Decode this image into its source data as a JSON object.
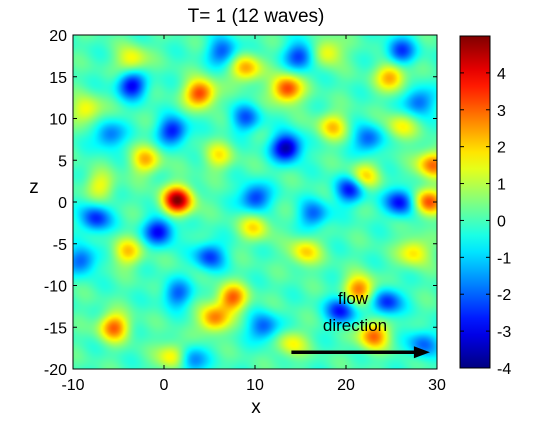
{
  "chart_data": {
    "type": "heatmap",
    "title": "T= 1   (12 waves)",
    "xlabel": "x",
    "ylabel": "z",
    "xlim": [
      -10,
      30
    ],
    "ylim": [
      -20,
      20
    ],
    "xticks": [
      -10,
      0,
      10,
      20,
      30
    ],
    "yticks": [
      -20,
      -15,
      -10,
      -5,
      0,
      5,
      10,
      15,
      20
    ],
    "colorbar": {
      "colormap": "jet",
      "clim": [
        -4,
        5
      ],
      "ticks": [
        -4,
        -3,
        -2,
        -1,
        0,
        1,
        2,
        3,
        4
      ]
    },
    "grid": false,
    "annotation": {
      "text_line1": "flow",
      "text_line2": "direction",
      "arrow": {
        "from": [
          14,
          -18
        ],
        "to": [
          29,
          -18
        ]
      }
    },
    "peaks": [
      {
        "x": 1.5,
        "z": 0.2,
        "value": 4.8
      },
      {
        "x": 13.5,
        "z": 13.5,
        "value": 3.5
      },
      {
        "x": 4.0,
        "z": 13.0,
        "value": 3.5
      },
      {
        "x": 7.5,
        "z": -11.5,
        "value": 3.0
      },
      {
        "x": 21.5,
        "z": -10.5,
        "value": 3.0
      },
      {
        "x": 23.0,
        "z": -16.0,
        "value": 3.0
      },
      {
        "x": 29.5,
        "z": 4.5,
        "value": 3.0
      },
      {
        "x": 29.0,
        "z": 0.0,
        "value": 3.2
      },
      {
        "x": -5.5,
        "z": -15.0,
        "value": 3.0
      },
      {
        "x": 5.5,
        "z": -14.0,
        "value": 2.8
      },
      {
        "x": 9.0,
        "z": 16.0,
        "value": 2.5
      },
      {
        "x": -2.0,
        "z": 5.0,
        "value": 2.2
      },
      {
        "x": 25.0,
        "z": 15.0,
        "value": 2.5
      },
      {
        "x": 18.5,
        "z": 9.0,
        "value": 2.0
      },
      {
        "x": 22.0,
        "z": 3.0,
        "value": 2.0
      },
      {
        "x": -8.5,
        "z": 11.0,
        "value": 1.8
      },
      {
        "x": -4.0,
        "z": -6.0,
        "value": 2.0
      },
      {
        "x": 10.0,
        "z": -3.0,
        "value": 1.8
      },
      {
        "x": 15.5,
        "z": -6.0,
        "value": 2.0
      },
      {
        "x": 1.0,
        "z": -18.5,
        "value": 2.0
      },
      {
        "x": 27.5,
        "z": -6.0,
        "value": 2.0
      },
      {
        "x": -7.0,
        "z": 2.0,
        "value": 1.5
      },
      {
        "x": 18.0,
        "z": 18.0,
        "value": 1.8
      },
      {
        "x": -3.5,
        "z": 17.0,
        "value": 1.8
      },
      {
        "x": 14.0,
        "z": -17.0,
        "value": 1.6
      },
      {
        "x": 6.0,
        "z": 5.5,
        "value": 1.6
      },
      {
        "x": 26.0,
        "z": 9.0,
        "value": 1.6
      },
      {
        "x": 13.5,
        "z": 6.5,
        "value": -3.8
      },
      {
        "x": -0.5,
        "z": -3.5,
        "value": -3.0
      },
      {
        "x": -3.5,
        "z": 14.0,
        "value": -3.0
      },
      {
        "x": 1.0,
        "z": 8.5,
        "value": -2.8
      },
      {
        "x": 10.0,
        "z": 0.5,
        "value": -2.6
      },
      {
        "x": 20.5,
        "z": 1.5,
        "value": -2.8
      },
      {
        "x": 26.0,
        "z": 0.0,
        "value": -3.0
      },
      {
        "x": 19.5,
        "z": -13.0,
        "value": -2.8
      },
      {
        "x": 24.5,
        "z": -12.0,
        "value": -2.6
      },
      {
        "x": 15.0,
        "z": 17.5,
        "value": -2.5
      },
      {
        "x": -7.5,
        "z": -2.0,
        "value": -2.6
      },
      {
        "x": -9.0,
        "z": -7.0,
        "value": -2.2
      },
      {
        "x": 5.0,
        "z": -6.5,
        "value": -2.4
      },
      {
        "x": 11.0,
        "z": -15.0,
        "value": -2.2
      },
      {
        "x": 26.0,
        "z": 18.0,
        "value": -2.4
      },
      {
        "x": 6.5,
        "z": 18.0,
        "value": -2.2
      },
      {
        "x": 3.0,
        "z": -19.0,
        "value": -2.0
      },
      {
        "x": -6.0,
        "z": 8.0,
        "value": -2.0
      },
      {
        "x": 22.5,
        "z": 7.5,
        "value": -2.2
      },
      {
        "x": 16.5,
        "z": -1.5,
        "value": -2.0
      },
      {
        "x": 28.5,
        "z": -17.0,
        "value": -2.0
      },
      {
        "x": 9.0,
        "z": 10.0,
        "value": -2.0
      },
      {
        "x": 28.0,
        "z": 12.0,
        "value": -2.2
      },
      {
        "x": 1.5,
        "z": -11.0,
        "value": -2.0
      }
    ]
  }
}
